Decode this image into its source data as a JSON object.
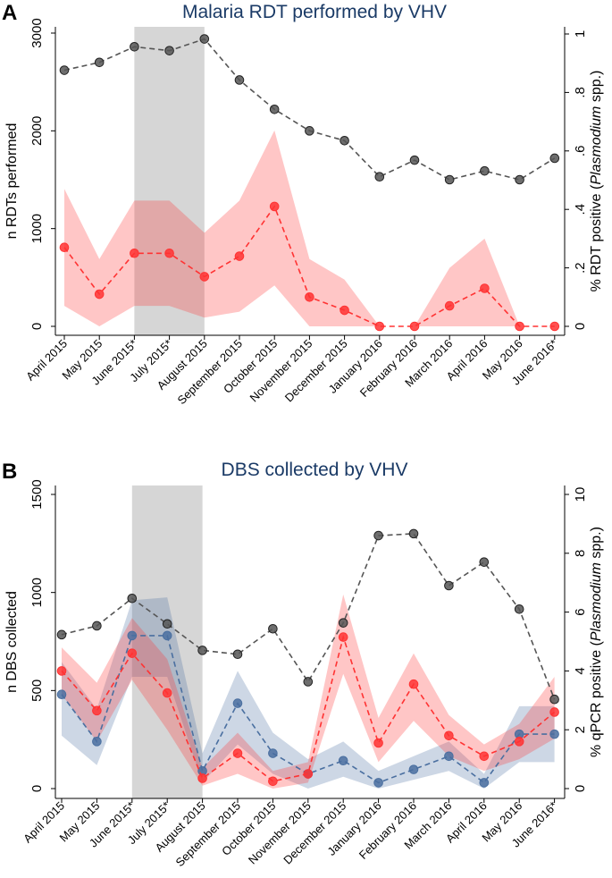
{
  "chart_data": [
    {
      "panel": "A",
      "type": "line",
      "title": "Malaria RDT performed by VHV",
      "categories": [
        "April 2015",
        "May 2015",
        "June 2015*",
        "July 2015*",
        "August 2015",
        "September 2015",
        "October 2015",
        "November 2015",
        "December 2015",
        "January 2016",
        "February 2016",
        "March 2016",
        "April 2016",
        "May 2016",
        "June 2016*"
      ],
      "ylabel": "n RDTs performed",
      "ylabel2_parts": [
        "% RDT positive (",
        "Plasmodium",
        " spp.)"
      ],
      "ylim": [
        0,
        3000
      ],
      "y_ticks": [
        0,
        1000,
        2000,
        3000
      ],
      "ylim2": [
        0,
        1
      ],
      "y2_ticks": [
        0,
        0.2,
        0.4,
        0.6,
        0.8,
        1
      ],
      "y2_tick_labels": [
        "0",
        ".2",
        ".4",
        ".6",
        ".8",
        "1"
      ],
      "shaded_regions": [
        {
          "from": 2,
          "to": 4
        },
        {
          "from": 14.5,
          "to": 15
        }
      ],
      "series": [
        {
          "name": "n RDTs performed",
          "axis": "left",
          "color": "#555555",
          "values": [
            2620,
            2700,
            2860,
            2820,
            2940,
            2520,
            2220,
            2000,
            1900,
            1530,
            1700,
            1500,
            1590,
            1500,
            1720
          ]
        },
        {
          "name": "% RDT positive",
          "axis": "right",
          "color": "#ff3333",
          "values": [
            0.27,
            0.11,
            0.25,
            0.25,
            0.17,
            0.24,
            0.41,
            0.1,
            0.055,
            0.0,
            0.0,
            0.07,
            0.13,
            0.0,
            0.0
          ],
          "ci_lower": [
            0.07,
            0.0,
            0.07,
            0.07,
            0.03,
            0.05,
            0.14,
            0.0,
            0.0,
            0.0,
            0.0,
            0.0,
            0.0,
            0.0,
            0.0
          ],
          "ci_upper": [
            0.47,
            0.23,
            0.43,
            0.43,
            0.32,
            0.43,
            0.67,
            0.23,
            0.16,
            0.0,
            0.0,
            0.2,
            0.3,
            0.0,
            0.0
          ]
        }
      ]
    },
    {
      "panel": "B",
      "type": "line",
      "title": "DBS collected by VHV",
      "categories": [
        "April 2015",
        "May 2015",
        "June 2015*",
        "July 2015*",
        "August 2015",
        "September 2015",
        "October 2015",
        "November 2015",
        "December 2015",
        "January 2016",
        "February 2016",
        "March 2016",
        "April 2016",
        "May 2016",
        "June 2016*"
      ],
      "ylabel": "n DBS collected",
      "ylabel2_parts": [
        "% qPCR positive (",
        "Plasmodium",
        " spp.)"
      ],
      "ylim": [
        0,
        1500
      ],
      "y_ticks": [
        0,
        500,
        1000,
        1500
      ],
      "ylim2": [
        0,
        10
      ],
      "y2_ticks": [
        0,
        2,
        4,
        6,
        8,
        10
      ],
      "y2_tick_labels": [
        "0",
        "2",
        "4",
        "6",
        "8",
        "10"
      ],
      "shaded_regions": [
        {
          "from": 2,
          "to": 4
        },
        {
          "from": 14.5,
          "to": 15
        }
      ],
      "series": [
        {
          "name": "n DBS collected",
          "axis": "left",
          "color": "#555555",
          "values": [
            785,
            830,
            970,
            840,
            705,
            685,
            815,
            545,
            845,
            1290,
            1300,
            1035,
            1155,
            915,
            455
          ]
        },
        {
          "name": "% qPCR positive (blue)",
          "axis": "right",
          "color": "#4a6fa0",
          "values": [
            3.2,
            1.6,
            5.2,
            5.2,
            0.6,
            2.9,
            1.2,
            0.5,
            0.95,
            0.2,
            0.65,
            1.1,
            0.2,
            1.85,
            1.85
          ],
          "ci_lower": [
            1.8,
            0.8,
            3.8,
            3.8,
            0.2,
            1.5,
            0.5,
            0.0,
            0.4,
            0.0,
            0.3,
            0.6,
            0.0,
            0.9,
            0.9
          ],
          "ci_upper": [
            4.3,
            2.7,
            6.4,
            6.5,
            1.2,
            4.0,
            1.9,
            1.0,
            1.6,
            0.6,
            1.1,
            1.6,
            0.5,
            2.8,
            2.8
          ]
        },
        {
          "name": "% qPCR positive (red)",
          "axis": "right",
          "color": "#ff3333",
          "values": [
            4.0,
            2.65,
            4.6,
            3.25,
            0.35,
            1.2,
            0.25,
            0.5,
            5.15,
            1.55,
            3.55,
            1.8,
            1.1,
            1.6,
            2.6
          ],
          "ci_lower": [
            3.2,
            1.6,
            3.7,
            2.0,
            0.1,
            0.5,
            0.0,
            0.2,
            3.9,
            0.9,
            2.3,
            1.1,
            0.6,
            1.0,
            1.7
          ],
          "ci_upper": [
            4.8,
            3.6,
            5.8,
            4.4,
            0.7,
            1.9,
            0.6,
            0.9,
            6.6,
            2.4,
            4.6,
            2.5,
            1.5,
            2.2,
            3.8
          ]
        }
      ]
    }
  ]
}
